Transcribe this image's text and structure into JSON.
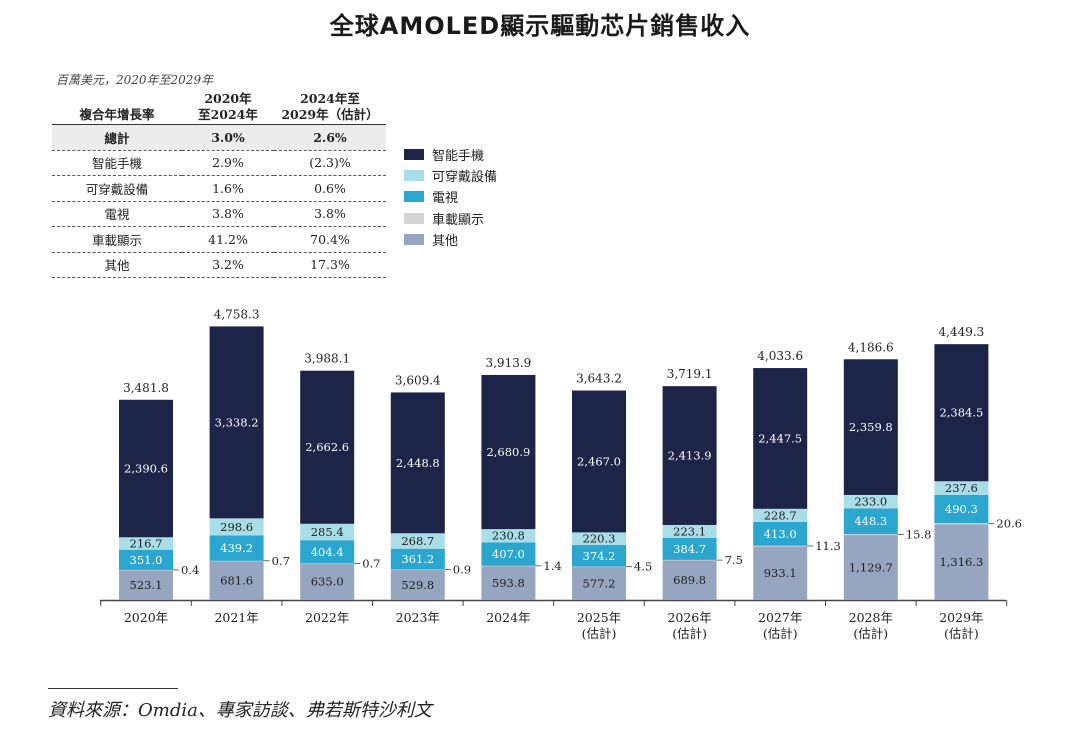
{
  "title": "全球AMOLED顯示驅動芯片銷售收入",
  "unit_note": "百萬美元，2020年至2029年",
  "cagr_table": {
    "header": [
      "複合年增長率",
      "2020年\n至2024年",
      "2024年至\n2029年（估計）"
    ],
    "rows": [
      {
        "label": "總計",
        "v1": "3.0%",
        "v2": "2.6%"
      },
      {
        "label": "智能手機",
        "v1": "2.9%",
        "v2": "(2.3)%"
      },
      {
        "label": "可穿戴設備",
        "v1": "1.6%",
        "v2": "0.6%"
      },
      {
        "label": "電視",
        "v1": "3.8%",
        "v2": "3.8%"
      },
      {
        "label": "車載顯示",
        "v1": "41.2%",
        "v2": "70.4%"
      },
      {
        "label": "其他",
        "v1": "3.2%",
        "v2": "17.3%"
      }
    ]
  },
  "legend": [
    {
      "label": "智能手機",
      "color": "#1c2447"
    },
    {
      "label": "可穿戴設備",
      "color": "#a9dde7"
    },
    {
      "label": "電視",
      "color": "#2ba6cf"
    },
    {
      "label": "車載顯示",
      "color": "#d4d4d4"
    },
    {
      "label": "其他",
      "color": "#97a6c0"
    }
  ],
  "source": "資料來源：Omdia、專家訪談、弗若斯特沙利文",
  "chart_data": {
    "type": "bar",
    "stacked": true,
    "categories": [
      "2020年",
      "2021年",
      "2022年",
      "2023年",
      "2024年",
      "2025年\n(估計)",
      "2026年\n(估計)",
      "2027年\n(估計)",
      "2028年\n(估計)",
      "2029年\n(估計)"
    ],
    "series": [
      {
        "name": "其他",
        "values": [
          523.1,
          681.6,
          635.0,
          529.8,
          593.8,
          577.2,
          689.8,
          933.1,
          1129.7,
          1316.3
        ],
        "labels": [
          "523.1",
          "681.6",
          "635.0",
          "529.8",
          "593.8",
          "577.2",
          "689.8",
          "933.1",
          "1,129.7",
          "1,316.3"
        ],
        "color": "#97a6c0",
        "text_color": "#222"
      },
      {
        "name": "車載顯示",
        "values": [
          0.4,
          0.7,
          0.7,
          0.9,
          1.4,
          4.5,
          7.5,
          11.3,
          15.8,
          20.6
        ],
        "labels": [
          "0.4",
          "0.7",
          "0.7",
          "0.9",
          "1.4",
          "4.5",
          "7.5",
          "11.3",
          "15.8",
          "20.6"
        ],
        "color": "#d4d4d4",
        "text_color": "#222"
      },
      {
        "name": "電視",
        "values": [
          351.0,
          439.2,
          404.4,
          361.2,
          407.0,
          374.2,
          384.7,
          413.0,
          448.3,
          490.3
        ],
        "labels": [
          "351.0",
          "439.2",
          "404.4",
          "361.2",
          "407.0",
          "374.2",
          "384.7",
          "413.0",
          "448.3",
          "490.3"
        ],
        "color": "#2ba6cf",
        "text_color": "#ffffff"
      },
      {
        "name": "可穿戴設備",
        "values": [
          216.7,
          298.6,
          285.4,
          268.7,
          230.8,
          220.3,
          223.1,
          228.7,
          233.0,
          237.6
        ],
        "labels": [
          "216.7",
          "298.6",
          "285.4",
          "268.7",
          "230.8",
          "220.3",
          "223.1",
          "228.7",
          "233.0",
          "237.6"
        ],
        "color": "#a9dde7",
        "text_color": "#222"
      },
      {
        "name": "智能手機",
        "values": [
          2390.6,
          3338.2,
          2662.6,
          2448.8,
          2680.9,
          2467.0,
          2413.9,
          2447.5,
          2359.8,
          2384.5
        ],
        "labels": [
          "2,390.6",
          "3,338.2",
          "2,662.6",
          "2,448.8",
          "2,680.9",
          "2,467.0",
          "2,413.9",
          "2,447.5",
          "2,359.8",
          "2,384.5"
        ],
        "color": "#1c2447",
        "text_color": "#ffffff"
      }
    ],
    "totals": [
      3481.8,
      4758.3,
      3988.1,
      3609.4,
      3913.9,
      3643.2,
      3719.1,
      4033.6,
      4186.6,
      4449.3
    ],
    "total_labels": [
      "3,481.8",
      "4,758.3",
      "3,988.1",
      "3,609.4",
      "3,913.9",
      "3,643.2",
      "3,719.1",
      "4,033.6",
      "4,186.6",
      "4,449.3"
    ],
    "ylim": [
      0,
      4800
    ]
  }
}
